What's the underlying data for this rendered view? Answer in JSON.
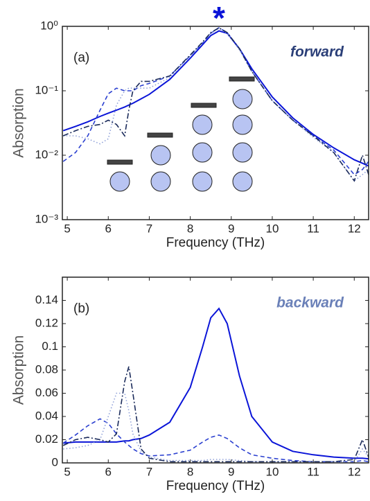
{
  "chart_data": [
    {
      "type": "line",
      "panel_label": "(a)",
      "annotation": "forward",
      "marker": "*",
      "x_label": "Frequency (THz)",
      "y_label": "Absorption",
      "log_y": true,
      "annotation_color": "#2b3f78",
      "x": [
        4.9,
        5.2,
        5.5,
        5.8,
        6.0,
        6.2,
        6.4,
        6.5,
        6.6,
        6.8,
        7.0,
        7.5,
        8.0,
        8.3,
        8.5,
        8.7,
        8.9,
        9.2,
        9.5,
        10,
        10.5,
        11,
        11.5,
        12,
        12.2,
        12.35
      ],
      "xlim": [
        4.88,
        12.35
      ],
      "xticks": [
        5,
        6,
        7,
        8,
        9,
        10,
        11,
        12
      ],
      "ylim": [
        0.001,
        1
      ],
      "yticks": [
        {
          "value": 0.001,
          "label": "10⁻³"
        },
        {
          "value": 0.01,
          "label": "10⁻²"
        },
        {
          "value": 0.1,
          "label": "10⁻¹"
        },
        {
          "value": 1,
          "label": "10⁰"
        }
      ],
      "series": [
        {
          "color": "#0a14d8",
          "style": "solid",
          "values": [
            0.024,
            0.028,
            0.033,
            0.04,
            0.045,
            0.05,
            0.056,
            0.06,
            0.064,
            0.075,
            0.088,
            0.15,
            0.32,
            0.52,
            0.72,
            0.85,
            0.78,
            0.45,
            0.22,
            0.08,
            0.038,
            0.021,
            0.013,
            0.0085,
            0.0075,
            0.0068
          ]
        },
        {
          "color": "#2a3fd0",
          "style": "dashed",
          "values": [
            0.008,
            0.011,
            0.02,
            0.05,
            0.09,
            0.11,
            0.1,
            0.1,
            0.1,
            0.12,
            0.13,
            0.17,
            0.35,
            0.55,
            0.78,
            0.95,
            0.8,
            0.45,
            0.2,
            0.07,
            0.035,
            0.02,
            0.012,
            0.005,
            0.006,
            0.008
          ]
        },
        {
          "color": "#8fa0d8",
          "style": "dotted",
          "values": [
            0.02,
            0.02,
            0.018,
            0.015,
            0.018,
            0.06,
            0.1,
            0.11,
            0.11,
            0.11,
            0.11,
            0.16,
            0.35,
            0.55,
            0.78,
            0.92,
            0.78,
            0.43,
            0.2,
            0.07,
            0.035,
            0.019,
            0.011,
            0.004,
            0.005,
            0.006
          ]
        },
        {
          "color": "#1a2a5a",
          "style": "dashdot",
          "values": [
            0.02,
            0.024,
            0.028,
            0.03,
            0.035,
            0.03,
            0.02,
            0.05,
            0.1,
            0.14,
            0.14,
            0.17,
            0.36,
            0.57,
            0.8,
            0.95,
            0.8,
            0.45,
            0.2,
            0.07,
            0.035,
            0.02,
            0.011,
            0.004,
            0.01,
            0.005
          ]
        }
      ]
    },
    {
      "type": "line",
      "panel_label": "(b)",
      "annotation": "backward",
      "x_label": "Frequency (THz)",
      "y_label": "Absorption",
      "log_y": false,
      "annotation_color": "#6a80b8",
      "x": [
        4.9,
        5.2,
        5.5,
        5.8,
        6.0,
        6.2,
        6.4,
        6.5,
        6.6,
        6.8,
        7.0,
        7.5,
        8.0,
        8.3,
        8.5,
        8.7,
        8.9,
        9.2,
        9.5,
        10,
        10.5,
        11,
        11.5,
        12,
        12.2,
        12.35
      ],
      "xlim": [
        4.88,
        12.35
      ],
      "xticks": [
        5,
        6,
        7,
        8,
        9,
        10,
        11,
        12
      ],
      "ylim": [
        0,
        0.16
      ],
      "yticks": [
        0,
        0.02,
        0.04,
        0.06,
        0.08,
        0.1,
        0.12,
        0.14
      ],
      "series": [
        {
          "color": "#0a14d8",
          "style": "solid",
          "values": [
            0.017,
            0.018,
            0.018,
            0.018,
            0.018,
            0.018,
            0.019,
            0.019,
            0.02,
            0.021,
            0.024,
            0.035,
            0.065,
            0.1,
            0.125,
            0.133,
            0.12,
            0.075,
            0.04,
            0.018,
            0.01,
            0.007,
            0.005,
            0.004,
            0.004,
            0.0035
          ]
        },
        {
          "color": "#2a3fd0",
          "style": "dashed",
          "values": [
            0.017,
            0.024,
            0.032,
            0.038,
            0.034,
            0.025,
            0.018,
            0.015,
            0.012,
            0.008,
            0.006,
            0.007,
            0.011,
            0.018,
            0.022,
            0.024,
            0.021,
            0.013,
            0.007,
            0.004,
            0.002,
            0.001,
            0.001,
            0.001,
            0.002,
            0.001
          ]
        },
        {
          "color": "#8fa0d8",
          "style": "dotted",
          "values": [
            0.012,
            0.013,
            0.015,
            0.02,
            0.04,
            0.06,
            0.06,
            0.045,
            0.025,
            0.01,
            0.005,
            0.002,
            0.002,
            0.002,
            0.003,
            0.003,
            0.003,
            0.002,
            0.001,
            0.001,
            0.001,
            0.001,
            0.001,
            0.001,
            0.012,
            0.005
          ]
        },
        {
          "color": "#1a2a5a",
          "style": "dashdot",
          "values": [
            0.015,
            0.02,
            0.022,
            0.02,
            0.018,
            0.025,
            0.07,
            0.083,
            0.06,
            0.012,
            0.004,
            0.001,
            0.001,
            0.001,
            0.001,
            0.001,
            0.001,
            0.001,
            0.001,
            0.001,
            0.001,
            0.001,
            0.001,
            0.003,
            0.02,
            0.005
          ]
        }
      ]
    }
  ]
}
